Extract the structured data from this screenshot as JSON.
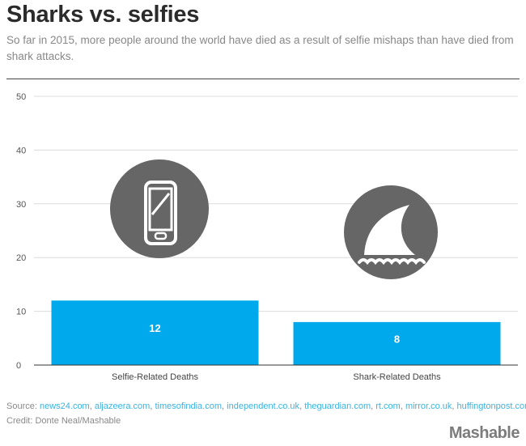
{
  "chart_data": {
    "type": "bar",
    "title": "Sharks vs. selfies",
    "subtitle": "So far in 2015, more people around the world have died as a result of selfie mishaps than have died from shark attacks.",
    "categories": [
      "Selfie-Related Deaths",
      "Shark-Related Deaths"
    ],
    "values": [
      12,
      8
    ],
    "data_labels": [
      "12",
      "8"
    ],
    "yticks": [
      "0",
      "10",
      "20",
      "30",
      "40",
      "50"
    ],
    "ylim": [
      0,
      50
    ],
    "grid": true,
    "bar_color": "#00a9ec",
    "icon_color": "#666666",
    "icons": [
      "smartphone-icon",
      "shark-fin-icon"
    ]
  },
  "footer": {
    "source_label": "Source: ",
    "sources": [
      "news24.com",
      "aljazeera.com",
      "timesofindia.com",
      "independent.co.uk",
      "theguardian.com",
      "rt.com",
      "mirror.co.uk",
      "huffingtonpost.com"
    ],
    "credit": "Credit: Donte Neal/Mashable"
  },
  "brand": "Mashable"
}
